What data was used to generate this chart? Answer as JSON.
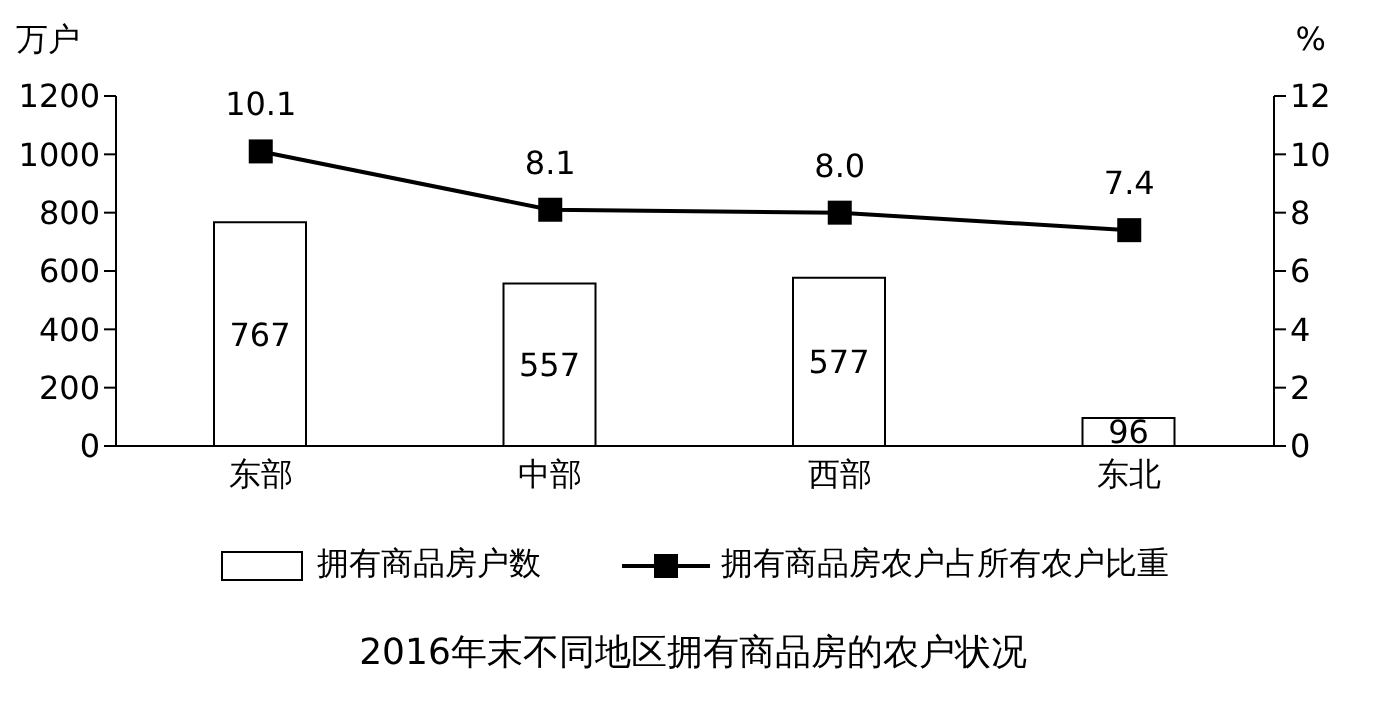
{
  "chart_data": {
    "type": "bar",
    "title": "2016年末不同地区拥有商品房的农户状况",
    "ylabel": "万户",
    "y2label": "%",
    "categories": [
      "东部",
      "中部",
      "西部",
      "东北"
    ],
    "series": [
      {
        "name": "拥有商品房户数",
        "color": "#ffffff",
        "values": [
          767,
          557,
          577,
          96
        ]
      },
      {
        "name": "拥有商品房农户占所有农户比重",
        "type": "line",
        "axis": "y2",
        "color": "#000000",
        "marker": "square",
        "values": [
          10.1,
          8.1,
          8.0,
          7.4
        ],
        "value_labels": [
          "10.1",
          "8.1",
          "8.0",
          "7.4"
        ]
      }
    ],
    "ylim": [
      0,
      1200
    ],
    "yticks": [
      0,
      200,
      400,
      600,
      800,
      1000,
      1200
    ],
    "y2lim": [
      0,
      12
    ],
    "y2ticks": [
      0,
      2,
      4,
      6,
      8,
      10,
      12
    ],
    "data_labels": true,
    "grid": false,
    "legend": "bottom"
  }
}
